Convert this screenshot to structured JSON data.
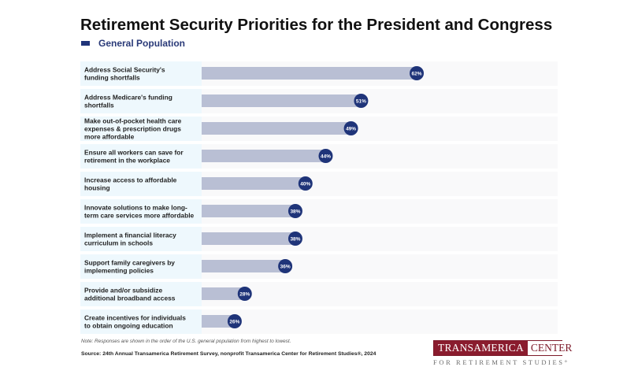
{
  "chart_data": {
    "type": "bar",
    "orientation": "horizontal",
    "title": "Retirement Security Priorities for the President and Congress",
    "legend": [
      {
        "label": "General Population",
        "color": "#1f3479"
      }
    ],
    "legend_position": "top-left",
    "categories": [
      "Address Social Security's funding shortfalls",
      "Address Medicare's funding shortfalls",
      "Make out-of-pocket health care expenses & prescription drugs more affordable",
      "Ensure all workers can save for retirement in the workplace",
      "Increase access to affordable housing",
      "Innovate solutions to make long-term care services more affordable",
      "Implement a financial literacy curriculum in schools",
      "Support family caregivers by implementing policies",
      "Provide and/or subsidize additional broadband access",
      "Create incentives for individuals to obtain ongoing education"
    ],
    "category_lines": [
      [
        "Address Social Security's",
        "funding shortfalls"
      ],
      [
        "Address Medicare's funding",
        "shortfalls"
      ],
      [
        "Make out-of-pocket health care",
        "expenses & prescription drugs",
        "more affordable"
      ],
      [
        "Ensure all workers can save for",
        "retirement in the workplace"
      ],
      [
        "Increase access to affordable",
        "housing"
      ],
      [
        "Innovate solutions to make long-",
        "term care services more affordable"
      ],
      [
        "Implement a financial literacy",
        "curriculum in schools"
      ],
      [
        "Support family caregivers by",
        "implementing policies"
      ],
      [
        "Provide and/or subsidize",
        "additional broadband access"
      ],
      [
        "Create incentives for individuals",
        "to obtain ongoing education"
      ]
    ],
    "series": [
      {
        "name": "General Population",
        "values": [
          62,
          51,
          49,
          44,
          40,
          38,
          38,
          36,
          28,
          26
        ]
      }
    ],
    "value_suffix": "%",
    "xlabel": "",
    "ylabel": "",
    "xlim": [
      0,
      100
    ],
    "grid": false,
    "colors": {
      "bar": "#b9bfd4",
      "marker": "#1f3479",
      "label_bg": "#eef8fd",
      "row_bg": "#f9f9fa"
    }
  },
  "note": "Note: Responses are shown in the order of the U.S. general population from highest to lowest.",
  "source": "Source: 24th Annual Transamerica Retirement Survey, nonprofit Transamerica Center for Retirement Studies®, 2024",
  "logo": {
    "part1": "TRANSAMERICA",
    "part2": "CENTER",
    "subtitle": "FOR RETIREMENT STUDIES°"
  }
}
